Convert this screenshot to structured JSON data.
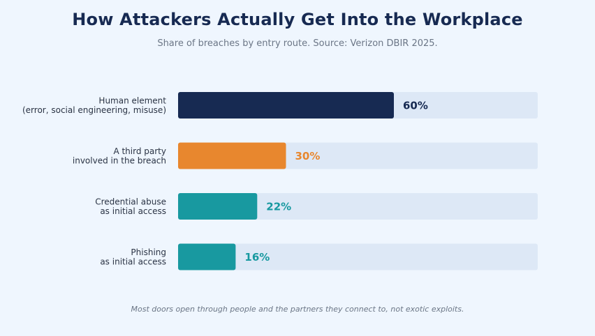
{
  "chart_data": {
    "type": "bar",
    "orientation": "horizontal",
    "title": "How Attackers Actually Get Into the Workplace",
    "subtitle": "Share of breaches by entry route. Source: Verizon DBIR 2025.",
    "footnote": "Most doors open through people and the partners they connect to, not exotic exploits.",
    "categories": [
      [
        "Human element",
        "(error, social engineering, misuse)"
      ],
      [
        "A third party",
        "involved in the breach"
      ],
      [
        "Credential abuse",
        "as initial access"
      ],
      [
        "Phishing",
        "as initial access"
      ]
    ],
    "values": [
      60,
      30,
      22,
      16
    ],
    "value_labels": [
      "60%",
      "30%",
      "22%",
      "16%"
    ],
    "colors": [
      "#172a52",
      "#e8872e",
      "#1899a0",
      "#1899a0"
    ],
    "track_color": "#dde8f6",
    "xlim": [
      0,
      100
    ],
    "grid": false,
    "legend": "none"
  }
}
